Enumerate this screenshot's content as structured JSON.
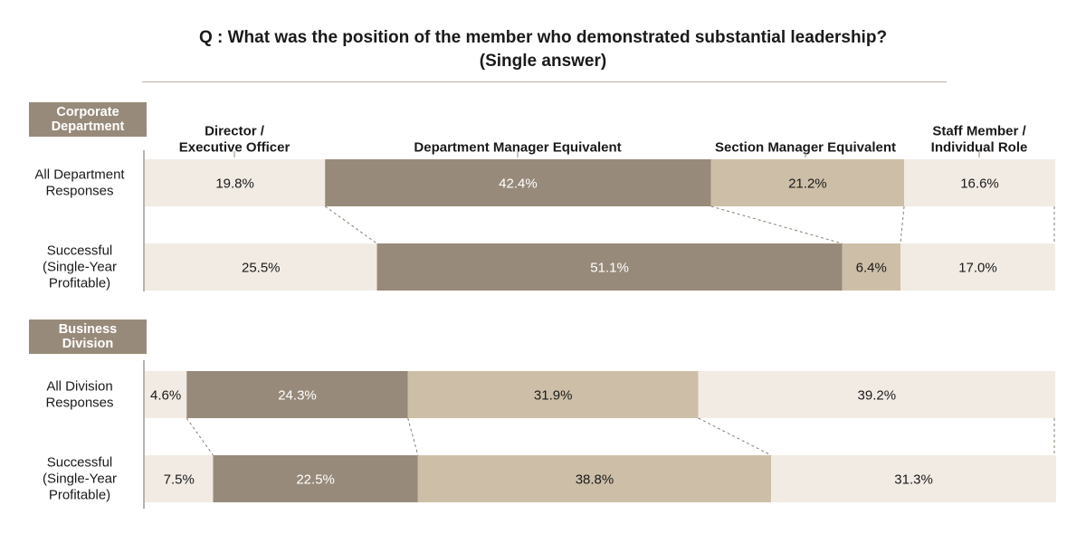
{
  "title_line1": "Q : What was the position of the member who demonstrated substantial leadership?",
  "title_line2": "(Single answer)",
  "colors": {
    "director": "#f2ebe4",
    "dept_manager": "#988a7a",
    "section_manager": "#cdbfa7",
    "staff": "#f2ebe4",
    "section_label_bg": "#988a7a",
    "guide": "#8a7e70"
  },
  "chart_data": {
    "type": "bar",
    "stacked": true,
    "orientation": "horizontal",
    "unit": "%",
    "title": "Q : What was the position of the member who demonstrated substantial leadership? (Single answer)",
    "legend_placement": "top",
    "series_labels": [
      [
        "Director /",
        "Executive Officer"
      ],
      [
        "Department Manager Equivalent"
      ],
      [
        "Section Manager Equivalent"
      ],
      [
        "Staff  Member /",
        "Individual Role"
      ]
    ],
    "series": [
      {
        "name": "Director / Executive Officer",
        "values": [
          19.8,
          25.5,
          4.6,
          7.5
        ]
      },
      {
        "name": "Department Manager Equivalent",
        "values": [
          42.4,
          51.1,
          24.3,
          22.5
        ]
      },
      {
        "name": "Section Manager Equivalent",
        "values": [
          21.2,
          6.4,
          31.9,
          38.8
        ]
      },
      {
        "name": "Staff Member / Individual Role",
        "values": [
          16.6,
          17.0,
          39.2,
          31.3
        ]
      }
    ],
    "groups": [
      {
        "name": [
          "Corporate",
          "Department"
        ],
        "rows": [
          {
            "label": [
              "All Department",
              "Responses"
            ],
            "values": [
              19.8,
              42.4,
              21.2,
              16.6
            ]
          },
          {
            "label": [
              "Successful",
              "(Single-Year",
              "Profitable)"
            ],
            "values": [
              25.5,
              51.1,
              6.4,
              17.0
            ]
          }
        ]
      },
      {
        "name": [
          "Business",
          "Division"
        ],
        "rows": [
          {
            "label": [
              "All Division",
              "Responses"
            ],
            "values": [
              4.6,
              24.3,
              31.9,
              39.2
            ]
          },
          {
            "label": [
              "Successful",
              "(Single-Year",
              "Profitable)"
            ],
            "values": [
              7.5,
              22.5,
              38.8,
              31.3
            ]
          }
        ]
      }
    ],
    "xlim": [
      0,
      100
    ]
  }
}
